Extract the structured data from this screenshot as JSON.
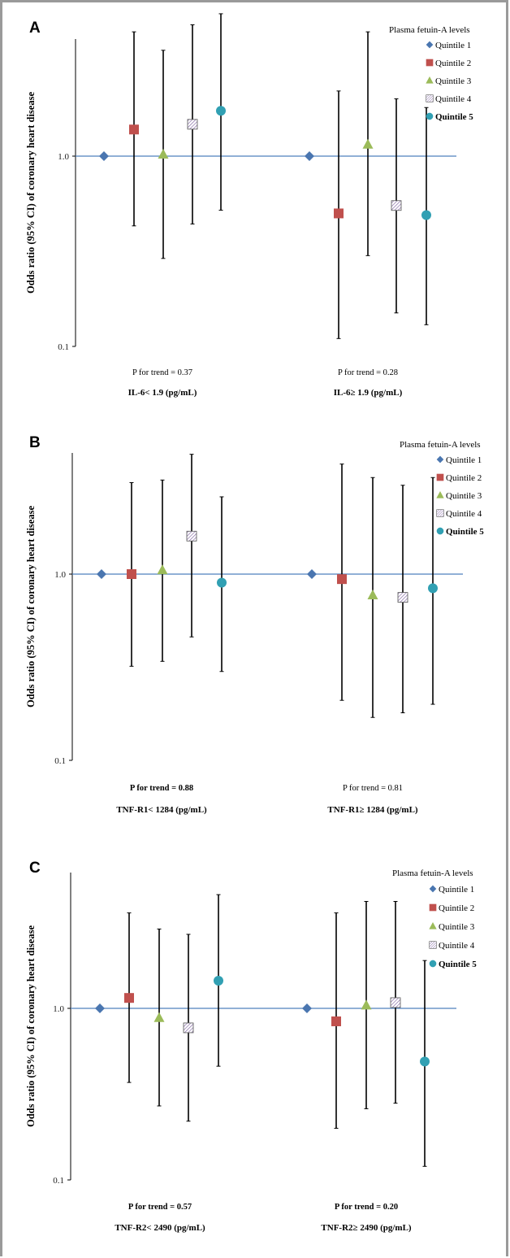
{
  "chart_data": [
    {
      "type": "scatter",
      "panel": "A",
      "ylabel": "Odds ratio (95% CI) of coronary heart disease",
      "yscale": "log",
      "ylim": [
        0.1,
        5
      ],
      "y_ticks": [
        "0.1",
        "1.0"
      ],
      "reference_line": 1.0,
      "legend": {
        "title": "Plasma fetuin-A levels",
        "placement": "top-right",
        "items": [
          "Quintile 1",
          "Quintile 2",
          "Quintile 3",
          "Quintile 4",
          "Quintile 5"
        ],
        "bold": [
          false,
          false,
          false,
          false,
          true
        ]
      },
      "groups": [
        {
          "label": "IL-6< 1.9 (pg/mL)",
          "p_trend": "P for trend = 0.37",
          "p_bold": false,
          "points": [
            {
              "series": "Quintile 1",
              "or": 1.0,
              "lo": null,
              "hi": null
            },
            {
              "series": "Quintile 2",
              "or": 1.38,
              "lo": 0.43,
              "hi": 4.5
            },
            {
              "series": "Quintile 3",
              "or": 1.02,
              "lo": 0.29,
              "hi": 3.6
            },
            {
              "series": "Quintile 4",
              "or": 1.47,
              "lo": 0.44,
              "hi": 4.9
            },
            {
              "series": "Quintile 5",
              "or": 1.73,
              "lo": 0.52,
              "hi": 5.6
            }
          ]
        },
        {
          "label": "IL-6≥ 1.9 (pg/mL)",
          "p_trend": "P for trend = 0.28",
          "p_bold": false,
          "points": [
            {
              "series": "Quintile 1",
              "or": 1.0,
              "lo": null,
              "hi": null
            },
            {
              "series": "Quintile 2",
              "or": 0.5,
              "lo": 0.11,
              "hi": 2.2
            },
            {
              "series": "Quintile 3",
              "or": 1.15,
              "lo": 0.3,
              "hi": 4.5
            },
            {
              "series": "Quintile 4",
              "or": 0.55,
              "lo": 0.15,
              "hi": 2.0
            },
            {
              "series": "Quintile 5",
              "or": 0.49,
              "lo": 0.13,
              "hi": 1.8
            }
          ]
        }
      ]
    },
    {
      "type": "scatter",
      "panel": "B",
      "ylabel": "Odds ratio (95% CI) of coronary heart disease",
      "yscale": "log",
      "ylim": [
        0.1,
        4.5
      ],
      "y_ticks": [
        "0.1",
        "1.0"
      ],
      "reference_line": 1.0,
      "legend": {
        "title": "Plasma fetuin-A levels",
        "placement": "top-right",
        "items": [
          "Quintile 1",
          "Quintile 2",
          "Quintile 3",
          "Quintile 4",
          "Quintile 5"
        ],
        "bold": [
          false,
          false,
          false,
          false,
          true
        ]
      },
      "groups": [
        {
          "label": "TNF-R1< 1284 (pg/mL)",
          "p_trend": "P for trend = 0.88",
          "p_bold": true,
          "points": [
            {
              "series": "Quintile 1",
              "or": 1.0,
              "lo": null,
              "hi": null
            },
            {
              "series": "Quintile 2",
              "or": 1.0,
              "lo": 0.32,
              "hi": 3.1
            },
            {
              "series": "Quintile 3",
              "or": 1.05,
              "lo": 0.34,
              "hi": 3.2
            },
            {
              "series": "Quintile 4",
              "or": 1.6,
              "lo": 0.46,
              "hi": 4.4
            },
            {
              "series": "Quintile 5",
              "or": 0.9,
              "lo": 0.3,
              "hi": 2.6
            }
          ]
        },
        {
          "label": "TNF-R1≥ 1284 (pg/mL)",
          "p_trend": "P for trend = 0.81",
          "p_bold": false,
          "points": [
            {
              "series": "Quintile 1",
              "or": 1.0,
              "lo": null,
              "hi": null
            },
            {
              "series": "Quintile 2",
              "or": 0.94,
              "lo": 0.21,
              "hi": 3.9
            },
            {
              "series": "Quintile 3",
              "or": 0.77,
              "lo": 0.17,
              "hi": 3.3
            },
            {
              "series": "Quintile 4",
              "or": 0.75,
              "lo": 0.18,
              "hi": 3.0
            },
            {
              "series": "Quintile 5",
              "or": 0.84,
              "lo": 0.2,
              "hi": 3.3
            }
          ]
        }
      ]
    },
    {
      "type": "scatter",
      "panel": "C",
      "ylabel": "Odds ratio (95% CI) of coronary heart disease",
      "yscale": "log",
      "ylim": [
        0.1,
        5
      ],
      "y_ticks": [
        "0.1",
        "1.0"
      ],
      "reference_line": 1.0,
      "legend": {
        "title": "Plasma fetuin-A levels",
        "placement": "top-right",
        "items": [
          "Quintile 1",
          "Quintile 2",
          "Quintile 3",
          "Quintile 4",
          "Quintile 5"
        ],
        "bold": [
          false,
          false,
          false,
          false,
          true
        ]
      },
      "groups": [
        {
          "label": "TNF-R2< 2490 (pg/mL)",
          "p_trend": "P for trend = 0.57",
          "p_bold": true,
          "points": [
            {
              "series": "Quintile 1",
              "or": 1.0,
              "lo": null,
              "hi": null
            },
            {
              "series": "Quintile 2",
              "or": 1.15,
              "lo": 0.37,
              "hi": 3.6
            },
            {
              "series": "Quintile 3",
              "or": 0.88,
              "lo": 0.27,
              "hi": 2.9
            },
            {
              "series": "Quintile 4",
              "or": 0.77,
              "lo": 0.22,
              "hi": 2.7
            },
            {
              "series": "Quintile 5",
              "or": 1.45,
              "lo": 0.46,
              "hi": 4.6
            }
          ]
        },
        {
          "label": "TNF-R2≥ 2490 (pg/mL)",
          "p_trend": "P for trend = 0.20",
          "p_bold": true,
          "points": [
            {
              "series": "Quintile 1",
              "or": 1.0,
              "lo": null,
              "hi": null
            },
            {
              "series": "Quintile 2",
              "or": 0.84,
              "lo": 0.2,
              "hi": 3.6
            },
            {
              "series": "Quintile 3",
              "or": 1.04,
              "lo": 0.26,
              "hi": 4.2
            },
            {
              "series": "Quintile 4",
              "or": 1.08,
              "lo": 0.28,
              "hi": 4.2
            },
            {
              "series": "Quintile 5",
              "or": 0.49,
              "lo": 0.12,
              "hi": 1.9
            }
          ]
        }
      ]
    }
  ],
  "styles": {
    "Quintile 1": {
      "marker": "diamond",
      "color": "#4a76b0"
    },
    "Quintile 2": {
      "marker": "square",
      "color": "#c0504d"
    },
    "Quintile 3": {
      "marker": "triangle",
      "color": "#9bbb59"
    },
    "Quintile 4": {
      "marker": "hatched-square",
      "color": "#8064a2"
    },
    "Quintile 5": {
      "marker": "circle",
      "color": "#31a0b3"
    },
    "reference_line_color": "#4f81bd",
    "error_bar_color": "#000000"
  }
}
